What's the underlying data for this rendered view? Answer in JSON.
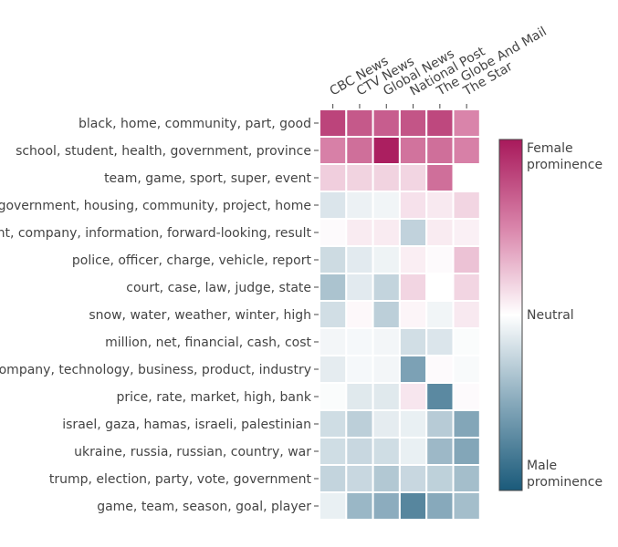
{
  "chart_data": {
    "type": "heatmap",
    "columns": [
      "CBC News",
      "CTV News",
      "Global News",
      "National Post",
      "The Globe And Mail",
      "The Star"
    ],
    "rows": [
      "black, home, community, part, good",
      "school, student, health, government, province",
      "team, game, sport, super, event",
      "government, housing, community, project, home",
      "ent, company, information, forward-looking, result",
      "police, officer, charge, vehicle, report",
      "court, case, law, judge, state",
      "snow, water, weather, winter, high",
      "million, net, financial, cash, cost",
      "company, technology, business, product, industry",
      "price, rate, market, high, bank",
      "israel, gaza, hamas, israeli, palestinian",
      "ukraine, russia, russian, country, war",
      "trump, election, party, vote, government",
      "game, team, season, goal, player"
    ],
    "values": [
      [
        0.8,
        0.7,
        0.68,
        0.72,
        0.78,
        0.5
      ],
      [
        0.52,
        0.6,
        0.97,
        0.58,
        0.6,
        0.52
      ],
      [
        0.2,
        0.18,
        0.18,
        0.17,
        0.6,
        null
      ],
      [
        -0.15,
        -0.08,
        -0.06,
        0.12,
        0.09,
        0.17
      ],
      [
        0.02,
        0.08,
        0.08,
        -0.26,
        0.08,
        0.06
      ],
      [
        -0.21,
        -0.12,
        -0.07,
        0.07,
        0.02,
        0.25
      ],
      [
        -0.35,
        -0.12,
        -0.25,
        0.17,
        0.0,
        0.17
      ],
      [
        -0.19,
        0.03,
        -0.28,
        0.04,
        -0.06,
        0.09
      ],
      [
        -0.05,
        -0.04,
        -0.05,
        -0.19,
        -0.15,
        -0.02
      ],
      [
        -0.11,
        -0.04,
        -0.05,
        -0.55,
        0.02,
        -0.03
      ],
      [
        -0.02,
        -0.13,
        -0.13,
        0.1,
        -0.7,
        0.02
      ],
      [
        -0.2,
        -0.28,
        -0.11,
        -0.09,
        -0.3,
        -0.52
      ],
      [
        -0.2,
        -0.23,
        -0.2,
        -0.09,
        -0.41,
        -0.52
      ],
      [
        -0.25,
        -0.23,
        -0.32,
        -0.23,
        -0.27,
        -0.38
      ],
      [
        -0.09,
        -0.42,
        -0.48,
        -0.72,
        -0.5,
        -0.38
      ]
    ],
    "colorscale": {
      "min": -1,
      "max": 1,
      "stops": [
        {
          "value": -1,
          "color": "#1a5a7a"
        },
        {
          "value": -0.5,
          "color": "#87a9bb"
        },
        {
          "value": 0,
          "color": "#ffffff"
        },
        {
          "value": 0.5,
          "color": "#d984aa"
        },
        {
          "value": 1,
          "color": "#a8195b"
        }
      ]
    },
    "colorbar_labels": {
      "top": [
        "Female",
        "prominence"
      ],
      "middle": "Neutral",
      "bottom": [
        "Male",
        "prominence"
      ]
    }
  }
}
